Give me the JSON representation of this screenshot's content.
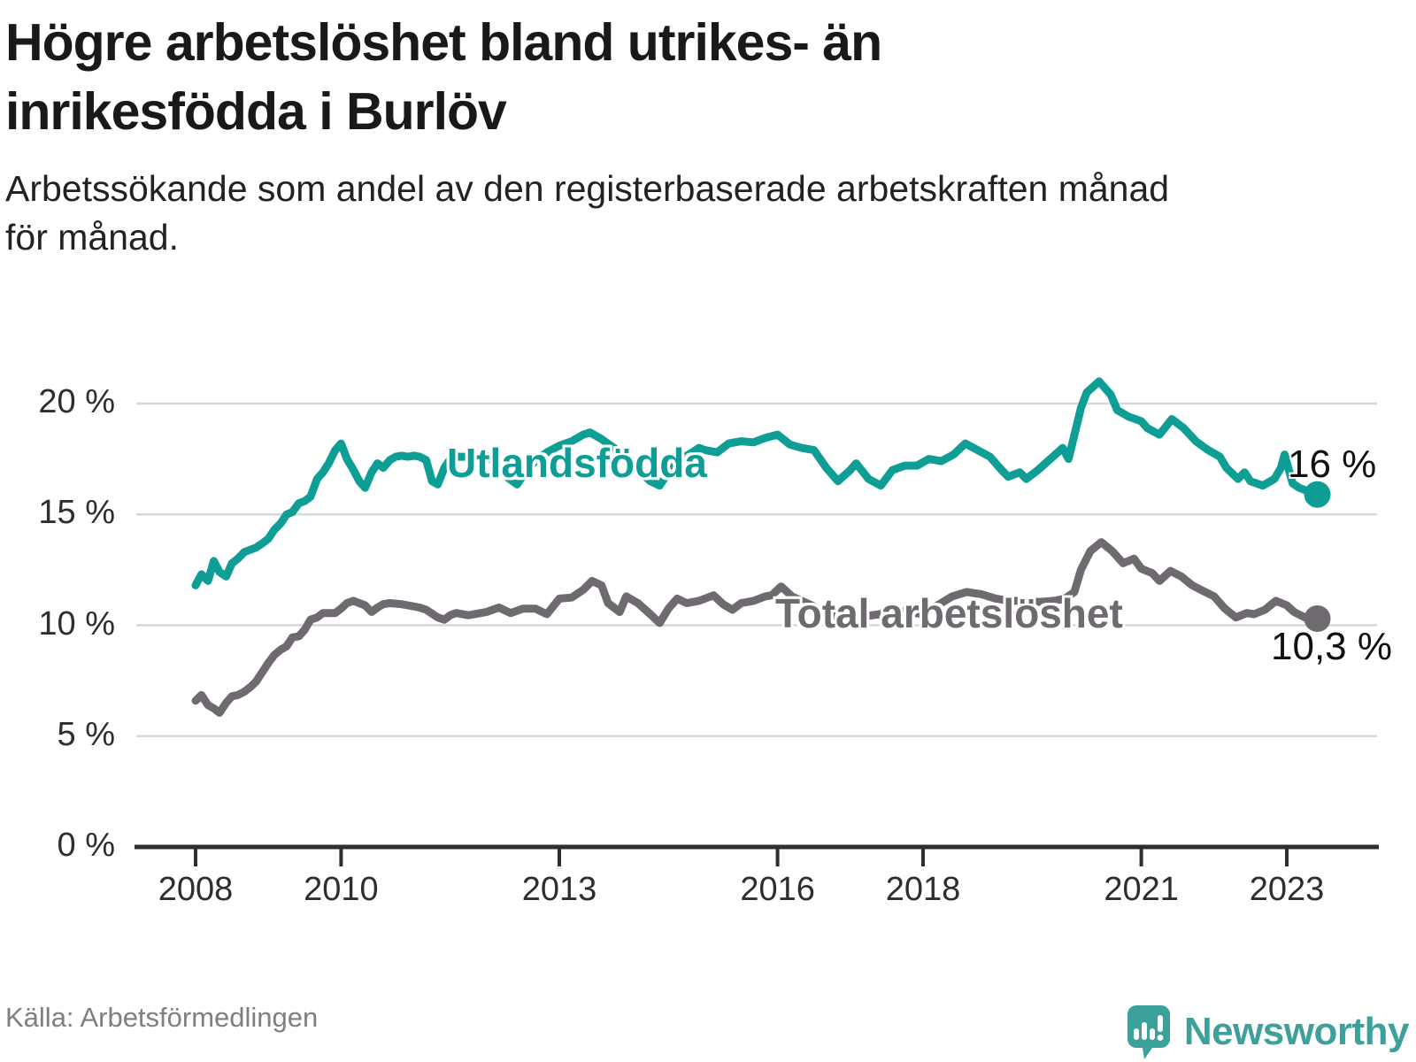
{
  "title_lines": [
    "Högre arbetslöshet bland utrikes- än",
    "inrikesfödda i Burlöv"
  ],
  "subtitle_lines": [
    "Arbetssökande som andel av den registerbaserade arbetskraften månad",
    "för månad."
  ],
  "source": "Källa: Arbetsförmedlingen",
  "brand": {
    "name": "Newsworthy",
    "color": "#3da19b"
  },
  "chart_data": {
    "type": "line",
    "grid": true,
    "ylim": [
      0,
      21.5
    ],
    "xlim": [
      2007.9,
      2024.2
    ],
    "yticks": [
      {
        "label": "20 %",
        "value": 20
      },
      {
        "label": "15 %",
        "value": 15
      },
      {
        "label": "10 %",
        "value": 10
      },
      {
        "label": "5 %",
        "value": 5
      },
      {
        "label": "0 %",
        "value": 0
      }
    ],
    "xticks": [
      {
        "label": "2008",
        "year": 2008
      },
      {
        "label": "2010",
        "year": 2010
      },
      {
        "label": "2013",
        "year": 2013
      },
      {
        "label": "2016",
        "year": 2016
      },
      {
        "label": "2018",
        "year": 2018
      },
      {
        "label": "2021",
        "year": 2021
      },
      {
        "label": "2023",
        "year": 2023
      }
    ],
    "series": [
      {
        "name": "Utlandsfödda",
        "color": "#0f9e96",
        "end_label": "16 %",
        "points": [
          [
            2008.0,
            11.8
          ],
          [
            2008.08,
            12.3
          ],
          [
            2008.17,
            12.0
          ],
          [
            2008.25,
            12.9
          ],
          [
            2008.33,
            12.4
          ],
          [
            2008.42,
            12.2
          ],
          [
            2008.5,
            12.8
          ],
          [
            2008.58,
            13.0
          ],
          [
            2008.67,
            13.3
          ],
          [
            2008.75,
            13.4
          ],
          [
            2008.83,
            13.5
          ],
          [
            2008.92,
            13.7
          ],
          [
            2009.0,
            13.9
          ],
          [
            2009.08,
            14.3
          ],
          [
            2009.17,
            14.6
          ],
          [
            2009.25,
            15.0
          ],
          [
            2009.33,
            15.1
          ],
          [
            2009.42,
            15.5
          ],
          [
            2009.5,
            15.6
          ],
          [
            2009.58,
            15.8
          ],
          [
            2009.67,
            16.6
          ],
          [
            2009.75,
            16.9
          ],
          [
            2009.83,
            17.3
          ],
          [
            2009.92,
            17.9
          ],
          [
            2010.0,
            18.2
          ],
          [
            2010.08,
            17.5
          ],
          [
            2010.17,
            17.0
          ],
          [
            2010.25,
            16.5
          ],
          [
            2010.33,
            16.2
          ],
          [
            2010.42,
            16.9
          ],
          [
            2010.5,
            17.3
          ],
          [
            2010.58,
            17.1
          ],
          [
            2010.67,
            17.45
          ],
          [
            2010.75,
            17.6
          ],
          [
            2010.83,
            17.65
          ],
          [
            2010.92,
            17.6
          ],
          [
            2011.0,
            17.65
          ],
          [
            2011.08,
            17.6
          ],
          [
            2011.17,
            17.45
          ],
          [
            2011.25,
            16.5
          ],
          [
            2011.33,
            16.35
          ],
          [
            2011.42,
            17.1
          ],
          [
            2011.5,
            17.5
          ],
          [
            2011.58,
            17.6
          ],
          [
            2011.75,
            17.6
          ],
          [
            2011.92,
            17.55
          ],
          [
            2012.0,
            17.65
          ],
          [
            2012.08,
            17.45
          ],
          [
            2012.17,
            17.05
          ],
          [
            2012.25,
            16.75
          ],
          [
            2012.42,
            16.35
          ],
          [
            2012.5,
            16.75
          ],
          [
            2012.58,
            17.1
          ],
          [
            2012.67,
            17.4
          ],
          [
            2012.83,
            17.8
          ],
          [
            2013.0,
            18.1
          ],
          [
            2013.17,
            18.3
          ],
          [
            2013.33,
            18.6
          ],
          [
            2013.42,
            18.7
          ],
          [
            2013.58,
            18.4
          ],
          [
            2013.75,
            18.0
          ],
          [
            2013.92,
            17.5
          ],
          [
            2014.08,
            17.0
          ],
          [
            2014.25,
            16.5
          ],
          [
            2014.38,
            16.3
          ],
          [
            2014.5,
            16.9
          ],
          [
            2014.67,
            17.5
          ],
          [
            2014.83,
            17.8
          ],
          [
            2014.92,
            18.0
          ],
          [
            2015.0,
            17.9
          ],
          [
            2015.17,
            17.8
          ],
          [
            2015.33,
            18.2
          ],
          [
            2015.5,
            18.3
          ],
          [
            2015.67,
            18.25
          ],
          [
            2015.83,
            18.45
          ],
          [
            2016.0,
            18.6
          ],
          [
            2016.17,
            18.15
          ],
          [
            2016.33,
            18.0
          ],
          [
            2016.5,
            17.9
          ],
          [
            2016.67,
            17.1
          ],
          [
            2016.83,
            16.5
          ],
          [
            2017.0,
            17.0
          ],
          [
            2017.08,
            17.3
          ],
          [
            2017.25,
            16.6
          ],
          [
            2017.42,
            16.3
          ],
          [
            2017.58,
            17.0
          ],
          [
            2017.75,
            17.2
          ],
          [
            2017.92,
            17.2
          ],
          [
            2018.08,
            17.5
          ],
          [
            2018.25,
            17.4
          ],
          [
            2018.42,
            17.7
          ],
          [
            2018.58,
            18.2
          ],
          [
            2018.75,
            17.9
          ],
          [
            2018.92,
            17.6
          ],
          [
            2019.08,
            17.0
          ],
          [
            2019.17,
            16.7
          ],
          [
            2019.33,
            16.9
          ],
          [
            2019.42,
            16.6
          ],
          [
            2019.58,
            17.0
          ],
          [
            2019.75,
            17.5
          ],
          [
            2019.92,
            18.0
          ],
          [
            2020.0,
            17.5
          ],
          [
            2020.17,
            19.8
          ],
          [
            2020.25,
            20.5
          ],
          [
            2020.42,
            21.0
          ],
          [
            2020.58,
            20.4
          ],
          [
            2020.67,
            19.7
          ],
          [
            2020.83,
            19.4
          ],
          [
            2020.92,
            19.3
          ],
          [
            2021.0,
            19.2
          ],
          [
            2021.08,
            18.9
          ],
          [
            2021.25,
            18.6
          ],
          [
            2021.42,
            19.3
          ],
          [
            2021.58,
            18.9
          ],
          [
            2021.75,
            18.3
          ],
          [
            2021.92,
            17.9
          ],
          [
            2022.08,
            17.6
          ],
          [
            2022.17,
            17.1
          ],
          [
            2022.33,
            16.6
          ],
          [
            2022.42,
            16.9
          ],
          [
            2022.5,
            16.5
          ],
          [
            2022.67,
            16.3
          ],
          [
            2022.83,
            16.6
          ],
          [
            2022.92,
            17.1
          ],
          [
            2022.97,
            17.7
          ],
          [
            2023.08,
            16.4
          ],
          [
            2023.17,
            16.2
          ],
          [
            2023.33,
            16.0
          ],
          [
            2023.42,
            15.9
          ]
        ]
      },
      {
        "name": "Total arbetslöshet",
        "color": "#6e6a70",
        "end_label": "10,3 %",
        "points": [
          [
            2008.0,
            6.6
          ],
          [
            2008.08,
            6.85
          ],
          [
            2008.17,
            6.4
          ],
          [
            2008.25,
            6.25
          ],
          [
            2008.33,
            6.05
          ],
          [
            2008.42,
            6.5
          ],
          [
            2008.5,
            6.8
          ],
          [
            2008.58,
            6.85
          ],
          [
            2008.67,
            7.0
          ],
          [
            2008.75,
            7.2
          ],
          [
            2008.83,
            7.45
          ],
          [
            2008.92,
            7.9
          ],
          [
            2009.0,
            8.3
          ],
          [
            2009.08,
            8.65
          ],
          [
            2009.17,
            8.9
          ],
          [
            2009.25,
            9.05
          ],
          [
            2009.33,
            9.45
          ],
          [
            2009.42,
            9.5
          ],
          [
            2009.5,
            9.8
          ],
          [
            2009.58,
            10.25
          ],
          [
            2009.67,
            10.35
          ],
          [
            2009.75,
            10.55
          ],
          [
            2009.92,
            10.55
          ],
          [
            2010.0,
            10.75
          ],
          [
            2010.08,
            11.0
          ],
          [
            2010.17,
            11.1
          ],
          [
            2010.33,
            10.9
          ],
          [
            2010.42,
            10.6
          ],
          [
            2010.5,
            10.8
          ],
          [
            2010.58,
            10.95
          ],
          [
            2010.67,
            11.0
          ],
          [
            2010.83,
            10.95
          ],
          [
            2010.92,
            10.9
          ],
          [
            2011.08,
            10.8
          ],
          [
            2011.17,
            10.7
          ],
          [
            2011.33,
            10.35
          ],
          [
            2011.42,
            10.25
          ],
          [
            2011.5,
            10.45
          ],
          [
            2011.58,
            10.55
          ],
          [
            2011.75,
            10.45
          ],
          [
            2011.92,
            10.55
          ],
          [
            2012.0,
            10.6
          ],
          [
            2012.17,
            10.8
          ],
          [
            2012.33,
            10.55
          ],
          [
            2012.5,
            10.75
          ],
          [
            2012.67,
            10.75
          ],
          [
            2012.83,
            10.5
          ],
          [
            2013.0,
            11.2
          ],
          [
            2013.17,
            11.25
          ],
          [
            2013.33,
            11.6
          ],
          [
            2013.45,
            12.0
          ],
          [
            2013.58,
            11.8
          ],
          [
            2013.67,
            11.0
          ],
          [
            2013.83,
            10.6
          ],
          [
            2013.92,
            11.3
          ],
          [
            2014.08,
            11.0
          ],
          [
            2014.25,
            10.5
          ],
          [
            2014.38,
            10.1
          ],
          [
            2014.5,
            10.75
          ],
          [
            2014.62,
            11.2
          ],
          [
            2014.75,
            11.0
          ],
          [
            2014.92,
            11.1
          ],
          [
            2015.0,
            11.2
          ],
          [
            2015.12,
            11.35
          ],
          [
            2015.25,
            10.95
          ],
          [
            2015.38,
            10.7
          ],
          [
            2015.5,
            11.0
          ],
          [
            2015.67,
            11.1
          ],
          [
            2015.83,
            11.3
          ],
          [
            2015.92,
            11.35
          ],
          [
            2016.05,
            11.75
          ],
          [
            2016.2,
            11.3
          ],
          [
            2016.4,
            11.0
          ],
          [
            2016.6,
            10.7
          ],
          [
            2016.8,
            10.4
          ],
          [
            2017.0,
            10.3
          ],
          [
            2017.2,
            10.4
          ],
          [
            2017.4,
            10.5
          ],
          [
            2017.6,
            10.7
          ],
          [
            2017.8,
            10.6
          ],
          [
            2018.0,
            10.5
          ],
          [
            2018.2,
            10.9
          ],
          [
            2018.4,
            11.3
          ],
          [
            2018.6,
            11.5
          ],
          [
            2018.8,
            11.4
          ],
          [
            2019.0,
            11.2
          ],
          [
            2019.2,
            11.1
          ],
          [
            2019.4,
            11.1
          ],
          [
            2019.6,
            11.05
          ],
          [
            2019.8,
            11.1
          ],
          [
            2019.95,
            11.2
          ],
          [
            2020.08,
            11.5
          ],
          [
            2020.17,
            12.5
          ],
          [
            2020.3,
            13.35
          ],
          [
            2020.45,
            13.75
          ],
          [
            2020.6,
            13.35
          ],
          [
            2020.75,
            12.8
          ],
          [
            2020.9,
            13.0
          ],
          [
            2021.0,
            12.55
          ],
          [
            2021.15,
            12.35
          ],
          [
            2021.25,
            12.0
          ],
          [
            2021.4,
            12.45
          ],
          [
            2021.55,
            12.2
          ],
          [
            2021.7,
            11.8
          ],
          [
            2021.85,
            11.55
          ],
          [
            2022.0,
            11.3
          ],
          [
            2022.15,
            10.75
          ],
          [
            2022.3,
            10.35
          ],
          [
            2022.45,
            10.55
          ],
          [
            2022.55,
            10.5
          ],
          [
            2022.7,
            10.7
          ],
          [
            2022.85,
            11.1
          ],
          [
            2023.0,
            10.9
          ],
          [
            2023.1,
            10.6
          ],
          [
            2023.25,
            10.35
          ],
          [
            2023.42,
            10.3
          ]
        ]
      }
    ]
  }
}
